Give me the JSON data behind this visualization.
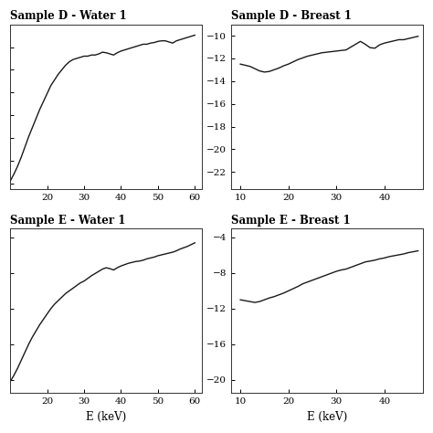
{
  "subplots": [
    {
      "title": "Sample D - Water 1",
      "xlabel": "",
      "xlim": [
        10,
        62
      ],
      "ylim": [
        -22.5,
        -8.0
      ],
      "yticks": [
        -22,
        -20,
        -18,
        -16,
        -14,
        -12,
        -10
      ],
      "xticks": [
        20,
        30,
        40,
        50,
        60
      ],
      "show_ylabels": false,
      "curve": {
        "x": [
          10,
          11,
          12,
          13,
          14,
          15,
          16,
          17,
          18,
          19,
          20,
          21,
          22,
          23,
          24,
          25,
          26,
          27,
          28,
          29,
          30,
          31,
          32,
          33,
          34,
          35,
          36,
          37,
          38,
          39,
          40,
          41,
          42,
          43,
          44,
          45,
          46,
          47,
          48,
          49,
          50,
          51,
          52,
          53,
          54,
          55,
          56,
          57,
          58,
          59,
          60
        ],
        "y": [
          -21.8,
          -21.2,
          -20.5,
          -19.7,
          -18.8,
          -17.9,
          -17.1,
          -16.3,
          -15.5,
          -14.8,
          -14.1,
          -13.4,
          -12.9,
          -12.4,
          -12.0,
          -11.6,
          -11.3,
          -11.1,
          -11.0,
          -10.9,
          -10.8,
          -10.8,
          -10.7,
          -10.7,
          -10.6,
          -10.45,
          -10.5,
          -10.6,
          -10.7,
          -10.5,
          -10.35,
          -10.25,
          -10.15,
          -10.05,
          -9.95,
          -9.85,
          -9.75,
          -9.75,
          -9.65,
          -9.6,
          -9.5,
          -9.45,
          -9.45,
          -9.55,
          -9.65,
          -9.45,
          -9.35,
          -9.25,
          -9.15,
          -9.05,
          -8.95
        ]
      }
    },
    {
      "title": "Sample D - Breast 1",
      "xlabel": "",
      "xlim": [
        8,
        48
      ],
      "ylim": [
        -23.5,
        -9.0
      ],
      "yticks": [
        -22,
        -20,
        -18,
        -16,
        -14,
        -12,
        -10
      ],
      "xticks": [
        10,
        20,
        30,
        40
      ],
      "show_ylabels": true,
      "curve": {
        "x": [
          10,
          11,
          12,
          13,
          14,
          15,
          16,
          17,
          18,
          19,
          20,
          21,
          22,
          23,
          24,
          25,
          26,
          27,
          28,
          29,
          30,
          31,
          32,
          33,
          34,
          35,
          36,
          37,
          38,
          39,
          40,
          41,
          42,
          43,
          44,
          45,
          46,
          47
        ],
        "y": [
          -12.5,
          -12.6,
          -12.7,
          -12.9,
          -13.1,
          -13.2,
          -13.15,
          -13.0,
          -12.85,
          -12.65,
          -12.5,
          -12.3,
          -12.1,
          -11.95,
          -11.8,
          -11.7,
          -11.6,
          -11.5,
          -11.45,
          -11.4,
          -11.35,
          -11.3,
          -11.25,
          -11.0,
          -10.75,
          -10.5,
          -10.75,
          -11.05,
          -11.1,
          -10.8,
          -10.65,
          -10.55,
          -10.45,
          -10.35,
          -10.35,
          -10.25,
          -10.15,
          -10.05
        ]
      }
    },
    {
      "title": "Sample E - Water 1",
      "xlabel": "E (keV)",
      "xlim": [
        10,
        62
      ],
      "ylim": [
        -21.5,
        -3.0
      ],
      "yticks": [
        -20,
        -16,
        -12,
        -8,
        -4
      ],
      "xticks": [
        20,
        30,
        40,
        50,
        60
      ],
      "show_ylabels": false,
      "curve": {
        "x": [
          10,
          11,
          12,
          13,
          14,
          15,
          16,
          17,
          18,
          19,
          20,
          21,
          22,
          23,
          24,
          25,
          26,
          27,
          28,
          29,
          30,
          31,
          32,
          33,
          34,
          35,
          36,
          37,
          38,
          39,
          40,
          41,
          42,
          43,
          44,
          45,
          46,
          47,
          48,
          49,
          50,
          51,
          52,
          53,
          54,
          55,
          56,
          57,
          58,
          59,
          60
        ],
        "y": [
          -20.2,
          -19.5,
          -18.7,
          -17.8,
          -16.9,
          -16.0,
          -15.2,
          -14.5,
          -13.8,
          -13.2,
          -12.6,
          -12.0,
          -11.5,
          -11.1,
          -10.7,
          -10.3,
          -10.0,
          -9.7,
          -9.4,
          -9.1,
          -8.9,
          -8.6,
          -8.3,
          -8.05,
          -7.8,
          -7.55,
          -7.4,
          -7.5,
          -7.65,
          -7.4,
          -7.2,
          -7.05,
          -6.9,
          -6.8,
          -6.7,
          -6.65,
          -6.55,
          -6.4,
          -6.3,
          -6.2,
          -6.05,
          -5.95,
          -5.85,
          -5.75,
          -5.65,
          -5.5,
          -5.3,
          -5.15,
          -5.0,
          -4.8,
          -4.6
        ]
      }
    },
    {
      "title": "Sample E - Breast 1",
      "xlabel": "E (keV)",
      "xlim": [
        8,
        48
      ],
      "ylim": [
        -21.5,
        -3.0
      ],
      "yticks": [
        -20,
        -16,
        -12,
        -8,
        -4
      ],
      "xticks": [
        10,
        20,
        30,
        40
      ],
      "show_ylabels": true,
      "curve": {
        "x": [
          10,
          11,
          12,
          13,
          14,
          15,
          16,
          17,
          18,
          19,
          20,
          21,
          22,
          23,
          24,
          25,
          26,
          27,
          28,
          29,
          30,
          31,
          32,
          33,
          34,
          35,
          36,
          37,
          38,
          39,
          40,
          41,
          42,
          43,
          44,
          45,
          46,
          47
        ],
        "y": [
          -11.0,
          -11.1,
          -11.2,
          -11.3,
          -11.2,
          -11.0,
          -10.8,
          -10.65,
          -10.45,
          -10.25,
          -10.0,
          -9.75,
          -9.5,
          -9.2,
          -9.0,
          -8.8,
          -8.6,
          -8.4,
          -8.2,
          -8.0,
          -7.8,
          -7.65,
          -7.55,
          -7.35,
          -7.15,
          -6.95,
          -6.75,
          -6.65,
          -6.55,
          -6.4,
          -6.3,
          -6.15,
          -6.05,
          -5.95,
          -5.85,
          -5.7,
          -5.6,
          -5.5
        ]
      }
    }
  ],
  "line_color": "#1a1a1a",
  "line_width": 1.0,
  "bg_color": "#ffffff",
  "title_fontsize": 8.5,
  "tick_fontsize": 7.5,
  "label_fontsize": 8.5,
  "font_family": "serif"
}
